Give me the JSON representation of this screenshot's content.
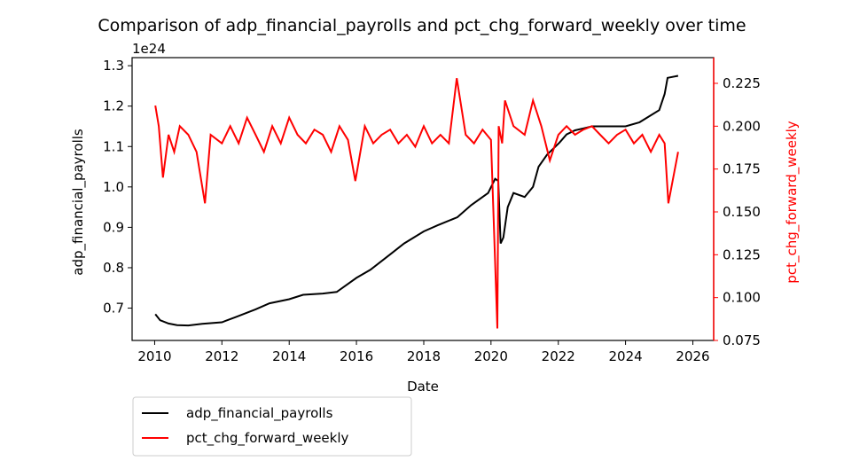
{
  "chart_data": {
    "type": "line",
    "title": "Comparison of adp_financial_payrolls and pct_chg_forward_weekly over time",
    "xlabel": "Date",
    "ylabel_left": "adp_financial_payrolls",
    "ylabel_right": "pct_chg_forward_weekly",
    "left_offset_text": "1e24",
    "xlim": [
      "2009-05-01",
      "2026-08-15"
    ],
    "ylim_left": [
      0.62,
      1.32
    ],
    "ylim_right": [
      0.075,
      0.24
    ],
    "x_ticks": [
      "2010",
      "2012",
      "2014",
      "2016",
      "2018",
      "2020",
      "2022",
      "2024",
      "2026"
    ],
    "y_ticks_left": [
      "0.7",
      "0.8",
      "0.9",
      "1.0",
      "1.1",
      "1.2",
      "1.3"
    ],
    "y_ticks_right": [
      "0.075",
      "0.100",
      "0.125",
      "0.150",
      "0.175",
      "0.200",
      "0.225"
    ],
    "grid": false,
    "legend_position": "below-left",
    "colors": {
      "adp_financial_payrolls": "#000000",
      "pct_chg_forward_weekly": "#ff0000",
      "right_axis": "#ff0000"
    },
    "series": [
      {
        "name": "adp_financial_payrolls",
        "axis": "left",
        "x": [
          "2010-01-08",
          "2010-03-01",
          "2010-06-01",
          "2010-09-01",
          "2011-01-01",
          "2011-06-01",
          "2012-01-01",
          "2012-06-01",
          "2013-01-01",
          "2013-06-01",
          "2014-01-01",
          "2014-06-01",
          "2015-01-01",
          "2015-06-01",
          "2016-01-01",
          "2016-06-01",
          "2017-01-01",
          "2017-06-01",
          "2018-01-01",
          "2018-06-01",
          "2019-01-01",
          "2019-06-01",
          "2019-12-01",
          "2020-02-15",
          "2020-03-20",
          "2020-04-15",
          "2020-05-15",
          "2020-07-01",
          "2020-09-01",
          "2021-01-01",
          "2021-04-01",
          "2021-06-01",
          "2021-09-01",
          "2021-12-01",
          "2022-01-15",
          "2022-04-01",
          "2022-07-01",
          "2022-10-01",
          "2023-01-01",
          "2023-06-01",
          "2024-01-01",
          "2024-06-01",
          "2025-01-01",
          "2025-03-01",
          "2025-04-01",
          "2025-07-25"
        ],
        "values": [
          0.685,
          0.67,
          0.662,
          0.658,
          0.657,
          0.661,
          0.665,
          0.678,
          0.697,
          0.712,
          0.722,
          0.733,
          0.736,
          0.74,
          0.775,
          0.795,
          0.833,
          0.86,
          0.89,
          0.905,
          0.925,
          0.955,
          0.985,
          1.02,
          1.015,
          0.86,
          0.875,
          0.95,
          0.985,
          0.975,
          1.0,
          1.05,
          1.08,
          1.1,
          1.11,
          1.13,
          1.14,
          1.145,
          1.15,
          1.15,
          1.15,
          1.16,
          1.19,
          1.23,
          1.27,
          1.275
        ]
      },
      {
        "name": "pct_chg_forward_weekly",
        "axis": "right",
        "x": [
          "2010-01-08",
          "2010-02-15",
          "2010-04-01",
          "2010-06-01",
          "2010-08-01",
          "2010-10-01",
          "2011-01-01",
          "2011-04-01",
          "2011-07-01",
          "2011-09-01",
          "2012-01-01",
          "2012-04-01",
          "2012-07-01",
          "2012-10-01",
          "2013-01-01",
          "2013-04-01",
          "2013-07-01",
          "2013-10-01",
          "2014-01-01",
          "2014-04-01",
          "2014-07-01",
          "2014-10-01",
          "2015-01-01",
          "2015-04-01",
          "2015-07-01",
          "2015-10-01",
          "2015-12-20",
          "2016-04-01",
          "2016-07-01",
          "2016-10-01",
          "2017-01-01",
          "2017-04-01",
          "2017-07-01",
          "2017-10-01",
          "2018-01-01",
          "2018-04-01",
          "2018-07-01",
          "2018-10-01",
          "2018-12-25",
          "2019-04-01",
          "2019-07-01",
          "2019-10-01",
          "2020-01-01",
          "2020-03-10",
          "2020-03-25",
          "2020-05-01",
          "2020-06-01",
          "2020-09-01",
          "2021-01-01",
          "2021-04-01",
          "2021-07-01",
          "2021-10-01",
          "2022-01-01",
          "2022-04-01",
          "2022-07-01",
          "2022-10-01",
          "2023-01-01",
          "2023-04-01",
          "2023-07-01",
          "2023-10-01",
          "2024-01-01",
          "2024-04-01",
          "2024-07-01",
          "2024-10-01",
          "2025-01-01",
          "2025-03-01",
          "2025-04-10",
          "2025-07-25"
        ],
        "values": [
          0.212,
          0.2,
          0.17,
          0.195,
          0.185,
          0.2,
          0.195,
          0.185,
          0.155,
          0.195,
          0.19,
          0.2,
          0.19,
          0.205,
          0.195,
          0.185,
          0.2,
          0.19,
          0.205,
          0.195,
          0.19,
          0.198,
          0.195,
          0.185,
          0.2,
          0.192,
          0.168,
          0.2,
          0.19,
          0.195,
          0.198,
          0.19,
          0.195,
          0.188,
          0.2,
          0.19,
          0.195,
          0.19,
          0.228,
          0.195,
          0.19,
          0.198,
          0.192,
          0.082,
          0.2,
          0.19,
          0.215,
          0.2,
          0.195,
          0.215,
          0.2,
          0.18,
          0.195,
          0.2,
          0.195,
          0.198,
          0.2,
          0.195,
          0.19,
          0.195,
          0.198,
          0.19,
          0.195,
          0.185,
          0.195,
          0.19,
          0.155,
          0.185
        ]
      }
    ]
  }
}
